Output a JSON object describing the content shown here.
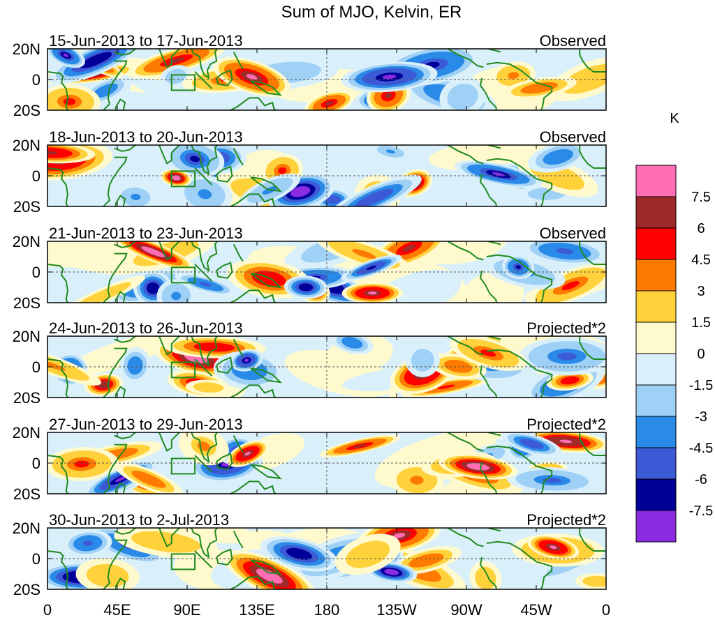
{
  "chart_data": {
    "type": "heatmap",
    "title": "Sum of MJO, Kelvin, ER",
    "units": "K",
    "x_ticks": [
      "0",
      "45E",
      "90E",
      "135E",
      "180",
      "135W",
      "90W",
      "45W",
      "0"
    ],
    "y_ticks": [
      "20N",
      "0",
      "20S"
    ],
    "ylim": [
      -20,
      20
    ],
    "xlim": [
      0,
      360
    ],
    "colorbar": {
      "labels": [
        "7.5",
        "6",
        "4.5",
        "3",
        "1.5",
        "0",
        "-1.5",
        "-3",
        "-4.5",
        "-6",
        "-7.5"
      ],
      "colors": [
        "#ff6eb4",
        "#9e2a2a",
        "#ff0000",
        "#ff7a00",
        "#ffd23c",
        "#fffacd",
        "#d9f0fa",
        "#9fd0f5",
        "#2a8ae8",
        "#3d5ad6",
        "#000098",
        "#8a2be2"
      ]
    },
    "panels": [
      {
        "date_range": "15-Jun-2013 to 17-Jun-2013",
        "label": "Observed"
      },
      {
        "date_range": "18-Jun-2013 to 20-Jun-2013",
        "label": "Observed"
      },
      {
        "date_range": "21-Jun-2013 to 23-Jun-2013",
        "label": "Observed"
      },
      {
        "date_range": "24-Jun-2013 to 26-Jun-2013",
        "label": "Projected*2"
      },
      {
        "date_range": "27-Jun-2013 to 29-Jun-2013",
        "label": "Projected*2"
      },
      {
        "date_range": "30-Jun-2013 to 2-Jul-2013",
        "label": "Projected*2"
      }
    ]
  }
}
